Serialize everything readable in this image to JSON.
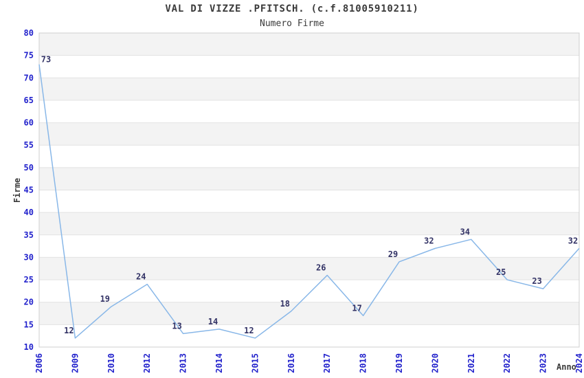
{
  "chart_data": {
    "type": "line",
    "title": "VAL DI VIZZE .PFITSCH. (c.f.81005910211)",
    "subtitle": "Numero Firme",
    "xlabel": "Anno",
    "ylabel": "Firme",
    "categories": [
      "2006",
      "2009",
      "2010",
      "2012",
      "2013",
      "2014",
      "2015",
      "2016",
      "2017",
      "2018",
      "2019",
      "2020",
      "2021",
      "2022",
      "2023",
      "2024"
    ],
    "values": [
      73,
      12,
      19,
      24,
      13,
      14,
      12,
      18,
      26,
      17,
      29,
      32,
      34,
      25,
      23,
      32
    ],
    "ylim": [
      10,
      80
    ],
    "ytick_step": 5,
    "grid": true,
    "band_fill": "alternating",
    "legend": "none",
    "colors": {
      "line": "#88b7e8",
      "tick_label": "#2222cc",
      "data_label": "#333366",
      "band": "#f3f3f3",
      "gridline": "#e2e2e2",
      "border": "#cfcfcf",
      "text": "#3a3a3a"
    }
  }
}
